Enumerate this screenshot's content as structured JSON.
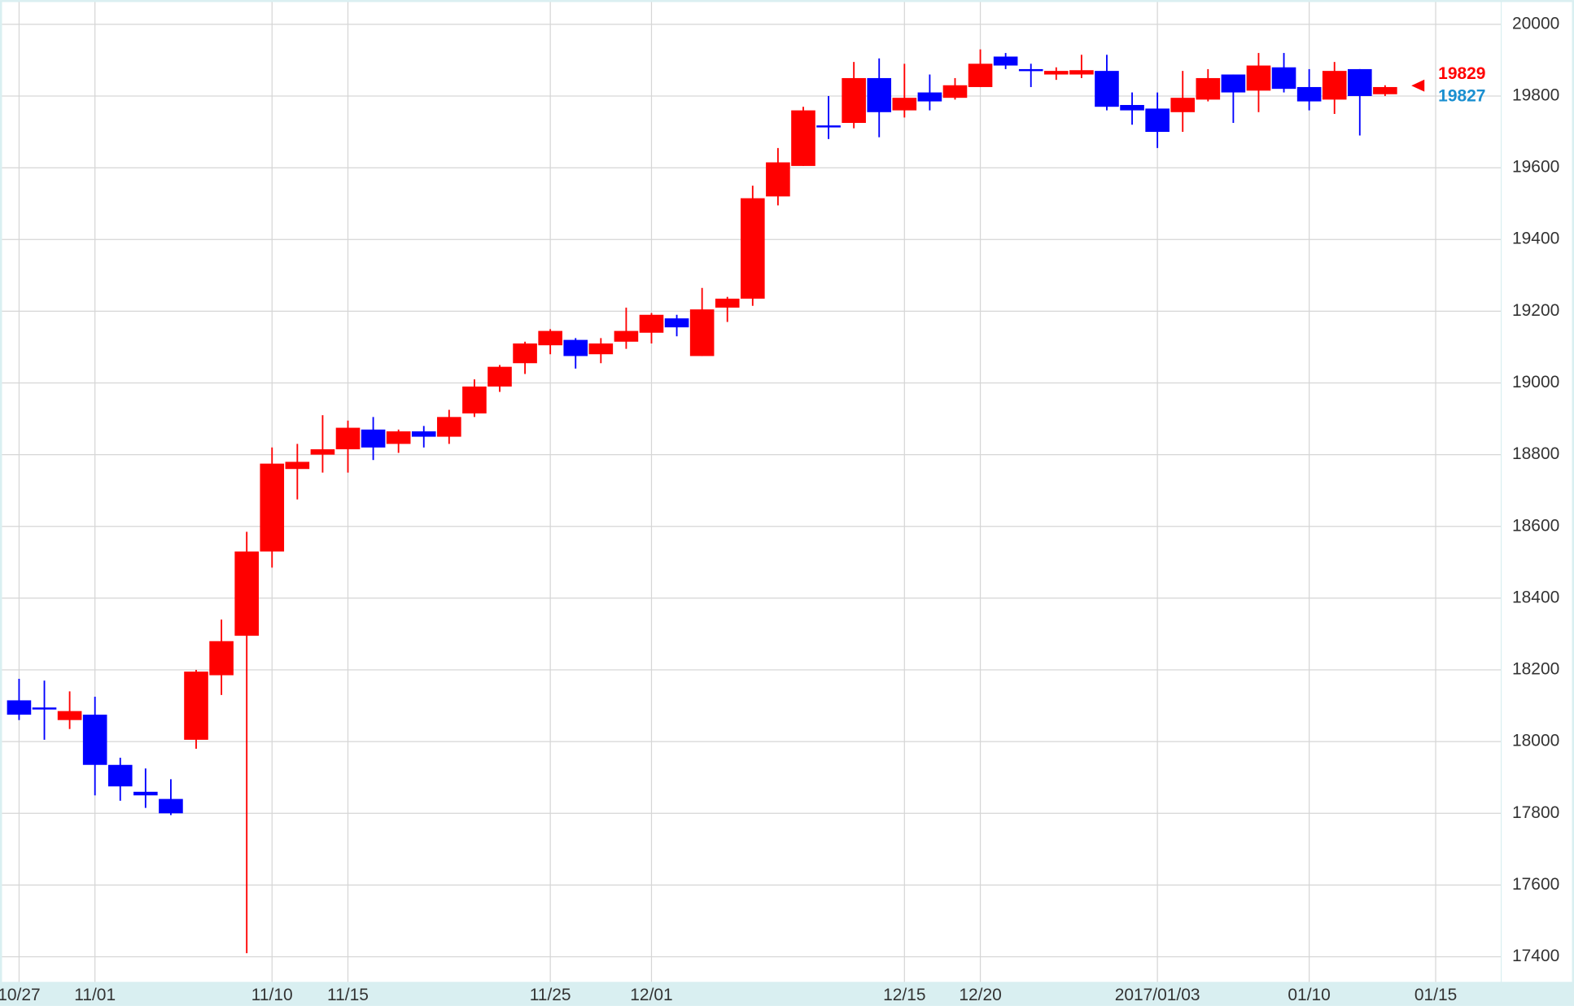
{
  "chart_data": {
    "type": "candlestick",
    "categories": [
      "10/27",
      null,
      null,
      "11/01",
      null,
      null,
      null,
      null,
      null,
      null,
      "11/10",
      null,
      null,
      "11/15",
      null,
      null,
      null,
      null,
      null,
      null,
      null,
      "11/25",
      null,
      null,
      null,
      "12/01",
      null,
      null,
      null,
      null,
      null,
      null,
      null,
      null,
      null,
      "12/15",
      null,
      null,
      "12/20",
      null,
      null,
      null,
      null,
      null,
      null,
      "2017/01/03",
      null,
      null,
      null,
      null,
      null,
      "01/10",
      null,
      null,
      null,
      null,
      "01/15"
    ],
    "open": [
      18115,
      18095,
      18060,
      18075,
      17935,
      17860,
      17840,
      18005,
      18185,
      18295,
      18530,
      18760,
      18800,
      18815,
      18870,
      18830,
      18865,
      18850,
      18915,
      18990,
      19055,
      19105,
      19120,
      19080,
      19115,
      19140,
      19180,
      19075,
      19210,
      19235,
      19520,
      19605,
      19718,
      19725,
      19850,
      19760,
      19810,
      19795,
      19825,
      19910,
      19875,
      19860,
      19860,
      19870,
      19775,
      19765,
      19755,
      19790,
      19860,
      19815,
      19880,
      19825,
      19790,
      19875,
      19805,
      null,
      null
    ],
    "high": [
      18175,
      18170,
      18140,
      18125,
      17955,
      17925,
      17895,
      18200,
      18340,
      18585,
      18820,
      18830,
      18910,
      18895,
      18905,
      18870,
      18880,
      18925,
      19010,
      19050,
      19115,
      19150,
      19125,
      19125,
      19210,
      19195,
      19190,
      19265,
      19240,
      19550,
      19655,
      19770,
      19800,
      19895,
      19905,
      19890,
      19860,
      19850,
      19930,
      19920,
      19890,
      19880,
      19915,
      19915,
      19810,
      19810,
      19870,
      19875,
      19860,
      19920,
      19920,
      19875,
      19895,
      19875,
      19830,
      null,
      null
    ],
    "low": [
      18060,
      18005,
      18035,
      17850,
      17835,
      17815,
      17795,
      17980,
      18130,
      17410,
      18485,
      18675,
      18750,
      18750,
      18785,
      18805,
      18820,
      18830,
      18905,
      18975,
      19025,
      19080,
      19040,
      19055,
      19095,
      19110,
      19130,
      19075,
      19170,
      19215,
      19495,
      19605,
      19680,
      19710,
      19685,
      19740,
      19760,
      19790,
      19825,
      19875,
      19825,
      19845,
      19850,
      19760,
      19720,
      19655,
      19700,
      19785,
      19725,
      19755,
      19810,
      19760,
      19750,
      19690,
      19800,
      null,
      null
    ],
    "close": [
      18075,
      18093,
      18085,
      17935,
      17875,
      17850,
      17800,
      18195,
      18280,
      18530,
      18775,
      18780,
      18815,
      18875,
      18820,
      18865,
      18850,
      18905,
      18990,
      19045,
      19110,
      19145,
      19075,
      19110,
      19145,
      19190,
      19155,
      19205,
      19235,
      19515,
      19615,
      19760,
      19715,
      19850,
      19755,
      19795,
      19785,
      19830,
      19890,
      19885,
      19870,
      19870,
      19872,
      19770,
      19760,
      19700,
      19795,
      19850,
      19810,
      19885,
      19820,
      19785,
      19870,
      19800,
      19825,
      null,
      null
    ],
    "up_color": "#ff0000",
    "down_color": "#0000ff",
    "price_markers": [
      {
        "value": 19829,
        "color": "#ff0000"
      },
      {
        "value": 19827,
        "color": "#1a8fd0"
      }
    ],
    "ylim": [
      17330,
      20062
    ],
    "yticks": [
      17400,
      17600,
      17800,
      18000,
      18200,
      18400,
      18600,
      18800,
      19000,
      19200,
      19400,
      19600,
      19800,
      20000
    ],
    "grid": true
  }
}
